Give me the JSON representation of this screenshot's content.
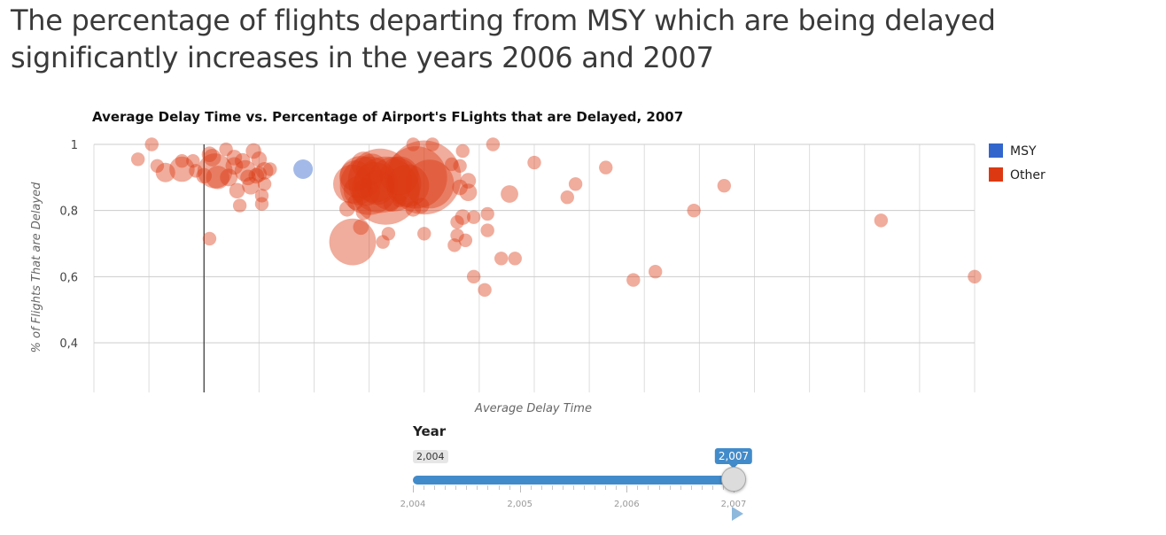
{
  "page": {
    "headline": "The percentage of flights departing from MSY which are being delayed significantly increases in the years 2006 and 2007"
  },
  "chart_data": {
    "type": "scatter",
    "title": "Average Delay Time vs. Percentage of Airport's FLights that are Delayed, 2007",
    "xlabel": "Average Delay Time",
    "ylabel": "% of Flights That are Delayed",
    "xlim": [
      0,
      16
    ],
    "ylim": [
      0.25,
      1
    ],
    "y_ticks": [
      1,
      0.8,
      0.6,
      0.4
    ],
    "y_tick_labels": [
      "1",
      "0,8",
      "0,6",
      "0,4"
    ],
    "grid": true,
    "legend_position": "right",
    "colors": {
      "MSY": "#3366cc",
      "Other": "#dc3912"
    },
    "series": [
      {
        "name": "MSY",
        "color": "#3366cc",
        "points": [
          {
            "x": 3.8,
            "y": 0.925,
            "size": 1.0
          }
        ]
      },
      {
        "name": "Other",
        "color": "#dc3912",
        "points": [
          {
            "x": 0.8,
            "y": 0.955,
            "size": 0.7
          },
          {
            "x": 1.05,
            "y": 1.0,
            "size": 0.7
          },
          {
            "x": 1.15,
            "y": 0.935,
            "size": 0.7
          },
          {
            "x": 1.3,
            "y": 0.915,
            "size": 1.0
          },
          {
            "x": 1.6,
            "y": 0.95,
            "size": 0.7
          },
          {
            "x": 1.6,
            "y": 0.925,
            "size": 1.3
          },
          {
            "x": 1.8,
            "y": 0.95,
            "size": 0.7
          },
          {
            "x": 1.85,
            "y": 0.92,
            "size": 0.7
          },
          {
            "x": 2.0,
            "y": 0.905,
            "size": 0.8
          },
          {
            "x": 2.1,
            "y": 0.97,
            "size": 0.8
          },
          {
            "x": 2.15,
            "y": 0.96,
            "size": 0.9
          },
          {
            "x": 2.2,
            "y": 0.92,
            "size": 1.8
          },
          {
            "x": 2.25,
            "y": 0.9,
            "size": 1.2
          },
          {
            "x": 2.1,
            "y": 0.715,
            "size": 0.7
          },
          {
            "x": 2.4,
            "y": 0.985,
            "size": 0.7
          },
          {
            "x": 2.45,
            "y": 0.9,
            "size": 0.9
          },
          {
            "x": 2.55,
            "y": 0.96,
            "size": 0.8
          },
          {
            "x": 2.6,
            "y": 0.86,
            "size": 0.8
          },
          {
            "x": 2.65,
            "y": 0.815,
            "size": 0.7
          },
          {
            "x": 2.7,
            "y": 0.95,
            "size": 0.8
          },
          {
            "x": 2.75,
            "y": 0.92,
            "size": 1.1
          },
          {
            "x": 2.8,
            "y": 0.9,
            "size": 0.8
          },
          {
            "x": 2.85,
            "y": 0.875,
            "size": 0.9
          },
          {
            "x": 2.9,
            "y": 0.98,
            "size": 0.8
          },
          {
            "x": 3.0,
            "y": 0.955,
            "size": 0.8
          },
          {
            "x": 3.0,
            "y": 0.91,
            "size": 0.8
          },
          {
            "x": 3.05,
            "y": 0.845,
            "size": 0.7
          },
          {
            "x": 3.05,
            "y": 0.82,
            "size": 0.7
          },
          {
            "x": 3.1,
            "y": 0.88,
            "size": 0.7
          },
          {
            "x": 3.1,
            "y": 0.92,
            "size": 0.9
          },
          {
            "x": 3.2,
            "y": 0.925,
            "size": 0.7
          },
          {
            "x": 2.55,
            "y": 0.935,
            "size": 0.9
          },
          {
            "x": 2.95,
            "y": 0.905,
            "size": 0.8
          },
          {
            "x": 4.7,
            "y": 0.705,
            "size": 2.4
          },
          {
            "x": 4.7,
            "y": 0.88,
            "size": 2.0
          },
          {
            "x": 4.75,
            "y": 0.905,
            "size": 1.6
          },
          {
            "x": 4.8,
            "y": 0.86,
            "size": 1.5
          },
          {
            "x": 4.85,
            "y": 0.9,
            "size": 2.2
          },
          {
            "x": 4.9,
            "y": 0.94,
            "size": 1.3
          },
          {
            "x": 4.95,
            "y": 0.855,
            "size": 1.4
          },
          {
            "x": 5.0,
            "y": 0.875,
            "size": 3.0
          },
          {
            "x": 5.05,
            "y": 0.925,
            "size": 1.6
          },
          {
            "x": 5.1,
            "y": 0.885,
            "size": 2.1
          },
          {
            "x": 5.15,
            "y": 0.87,
            "size": 1.8
          },
          {
            "x": 5.2,
            "y": 0.89,
            "size": 3.3
          },
          {
            "x": 5.3,
            "y": 0.86,
            "size": 3.5
          },
          {
            "x": 5.45,
            "y": 0.88,
            "size": 2.8
          },
          {
            "x": 5.55,
            "y": 0.905,
            "size": 2.0
          },
          {
            "x": 5.7,
            "y": 0.875,
            "size": 2.2
          },
          {
            "x": 5.85,
            "y": 0.9,
            "size": 3.2
          },
          {
            "x": 6.0,
            "y": 0.9,
            "size": 3.8
          },
          {
            "x": 6.1,
            "y": 0.88,
            "size": 2.5
          },
          {
            "x": 4.6,
            "y": 0.805,
            "size": 0.8
          },
          {
            "x": 4.75,
            "y": 0.825,
            "size": 0.8
          },
          {
            "x": 4.9,
            "y": 0.795,
            "size": 0.8
          },
          {
            "x": 4.85,
            "y": 0.75,
            "size": 0.8
          },
          {
            "x": 5.25,
            "y": 0.705,
            "size": 0.7
          },
          {
            "x": 5.35,
            "y": 0.73,
            "size": 0.7
          },
          {
            "x": 5.4,
            "y": 0.82,
            "size": 0.8
          },
          {
            "x": 5.55,
            "y": 0.83,
            "size": 0.7
          },
          {
            "x": 5.8,
            "y": 0.805,
            "size": 0.8
          },
          {
            "x": 5.95,
            "y": 0.815,
            "size": 0.8
          },
          {
            "x": 6.0,
            "y": 0.73,
            "size": 0.7
          },
          {
            "x": 5.8,
            "y": 1.0,
            "size": 0.7
          },
          {
            "x": 6.15,
            "y": 1.0,
            "size": 0.7
          },
          {
            "x": 6.5,
            "y": 0.94,
            "size": 0.7
          },
          {
            "x": 6.65,
            "y": 0.935,
            "size": 0.7
          },
          {
            "x": 6.7,
            "y": 0.98,
            "size": 0.7
          },
          {
            "x": 6.65,
            "y": 0.87,
            "size": 0.8
          },
          {
            "x": 6.8,
            "y": 0.89,
            "size": 0.8
          },
          {
            "x": 6.8,
            "y": 0.855,
            "size": 0.9
          },
          {
            "x": 6.55,
            "y": 0.695,
            "size": 0.7
          },
          {
            "x": 6.6,
            "y": 0.725,
            "size": 0.7
          },
          {
            "x": 6.6,
            "y": 0.765,
            "size": 0.7
          },
          {
            "x": 6.7,
            "y": 0.78,
            "size": 0.8
          },
          {
            "x": 6.75,
            "y": 0.71,
            "size": 0.7
          },
          {
            "x": 6.9,
            "y": 0.78,
            "size": 0.7
          },
          {
            "x": 6.9,
            "y": 0.6,
            "size": 0.7
          },
          {
            "x": 7.1,
            "y": 0.56,
            "size": 0.7
          },
          {
            "x": 7.15,
            "y": 0.74,
            "size": 0.7
          },
          {
            "x": 7.15,
            "y": 0.79,
            "size": 0.7
          },
          {
            "x": 7.25,
            "y": 1.0,
            "size": 0.7
          },
          {
            "x": 7.4,
            "y": 0.655,
            "size": 0.7
          },
          {
            "x": 7.55,
            "y": 0.85,
            "size": 0.9
          },
          {
            "x": 7.65,
            "y": 0.655,
            "size": 0.7
          },
          {
            "x": 8.0,
            "y": 0.945,
            "size": 0.7
          },
          {
            "x": 8.6,
            "y": 0.84,
            "size": 0.7
          },
          {
            "x": 8.75,
            "y": 0.88,
            "size": 0.7
          },
          {
            "x": 9.3,
            "y": 0.93,
            "size": 0.7
          },
          {
            "x": 9.8,
            "y": 0.59,
            "size": 0.7
          },
          {
            "x": 10.2,
            "y": 0.615,
            "size": 0.7
          },
          {
            "x": 10.9,
            "y": 0.8,
            "size": 0.7
          },
          {
            "x": 11.45,
            "y": 0.875,
            "size": 0.7
          },
          {
            "x": 14.3,
            "y": 0.77,
            "size": 0.7
          },
          {
            "x": 16.0,
            "y": 0.6,
            "size": 0.7
          }
        ]
      }
    ],
    "reference_line_x": 2.0
  },
  "legend": {
    "items": [
      {
        "label": "MSY",
        "color": "#3366cc"
      },
      {
        "label": "Other",
        "color": "#dc3912"
      }
    ]
  },
  "year_slider": {
    "label": "Year",
    "min": 2004,
    "max": 2007,
    "value": 2007,
    "min_label": "2,004",
    "value_label": "2,007",
    "tick_labels": [
      "2,004",
      "2,005",
      "2,006",
      "2,007"
    ]
  }
}
